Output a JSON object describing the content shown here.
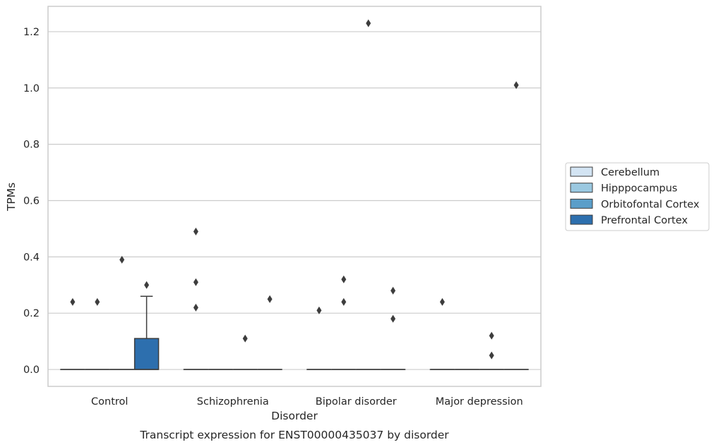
{
  "chart_data": {
    "type": "box",
    "xlabel": "Disorder",
    "ylabel": "TPMs",
    "caption": "Transcript expression for ENST00000435037 by disorder",
    "ylim": [
      -0.06,
      1.29
    ],
    "yticks": [
      0.0,
      0.2,
      0.4,
      0.6,
      0.8,
      1.0,
      1.2
    ],
    "ytick_labels": [
      "0.0",
      "0.2",
      "0.4",
      "0.6",
      "0.8",
      "1.0",
      "1.2"
    ],
    "grid": "horizontal",
    "legend_position": "right",
    "categories": [
      "Control",
      "Schizophrenia",
      "Bipolar disorder",
      "Major depression"
    ],
    "series": [
      {
        "name": "Cerebellum",
        "color": "#d3e4f3",
        "boxes": [
          {
            "q1": 0,
            "median": 0,
            "q3": 0,
            "whisker_low": 0,
            "whisker_high": 0,
            "outliers": [
              0.24
            ]
          },
          {
            "q1": 0,
            "median": 0,
            "q3": 0,
            "whisker_low": 0,
            "whisker_high": 0,
            "outliers": [
              0.49,
              0.31,
              0.22
            ]
          },
          {
            "q1": 0,
            "median": 0,
            "q3": 0,
            "whisker_low": 0,
            "whisker_high": 0,
            "outliers": [
              0.21
            ]
          },
          {
            "q1": 0,
            "median": 0,
            "q3": 0,
            "whisker_low": 0,
            "whisker_high": 0,
            "outliers": [
              0.24
            ]
          }
        ]
      },
      {
        "name": "Hipppocampus",
        "color": "#9ac8e0",
        "boxes": [
          {
            "q1": 0,
            "median": 0,
            "q3": 0,
            "whisker_low": 0,
            "whisker_high": 0,
            "outliers": [
              0.24
            ]
          },
          {
            "q1": 0,
            "median": 0,
            "q3": 0,
            "whisker_low": 0,
            "whisker_high": 0,
            "outliers": []
          },
          {
            "q1": 0,
            "median": 0,
            "q3": 0,
            "whisker_low": 0,
            "whisker_high": 0,
            "outliers": [
              0.32,
              0.24
            ]
          },
          {
            "q1": 0,
            "median": 0,
            "q3": 0,
            "whisker_low": 0,
            "whisker_high": 0,
            "outliers": []
          }
        ]
      },
      {
        "name": "Orbitofontal Cortex",
        "color": "#5a9ec9",
        "boxes": [
          {
            "q1": 0,
            "median": 0,
            "q3": 0,
            "whisker_low": 0,
            "whisker_high": 0,
            "outliers": [
              0.39
            ]
          },
          {
            "q1": 0,
            "median": 0,
            "q3": 0,
            "whisker_low": 0,
            "whisker_high": 0,
            "outliers": [
              0.11
            ]
          },
          {
            "q1": 0,
            "median": 0,
            "q3": 0,
            "whisker_low": 0,
            "whisker_high": 0,
            "outliers": [
              1.23
            ]
          },
          {
            "q1": 0,
            "median": 0,
            "q3": 0,
            "whisker_low": 0,
            "whisker_high": 0,
            "outliers": [
              0.12,
              0.05
            ]
          }
        ]
      },
      {
        "name": "Prefrontal Cortex",
        "color": "#2d6fae",
        "boxes": [
          {
            "q1": 0,
            "median": 0,
            "q3": 0.11,
            "whisker_low": 0,
            "whisker_high": 0.26,
            "outliers": [
              0.3
            ]
          },
          {
            "q1": 0,
            "median": 0,
            "q3": 0,
            "whisker_low": 0,
            "whisker_high": 0,
            "outliers": [
              0.25
            ]
          },
          {
            "q1": 0,
            "median": 0,
            "q3": 0,
            "whisker_low": 0,
            "whisker_high": 0,
            "outliers": [
              0.28,
              0.18
            ]
          },
          {
            "q1": 0,
            "median": 0,
            "q3": 0,
            "whisker_low": 0,
            "whisker_high": 0,
            "outliers": [
              1.01
            ]
          }
        ]
      }
    ]
  }
}
